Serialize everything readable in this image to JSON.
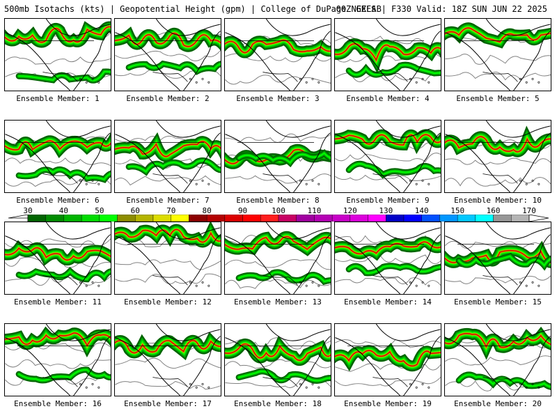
{
  "header": {
    "left": "500mb Isotachs (kts) | Geopotential Height (gpm) | College of DuPage NEXLAB",
    "right": "00Z GEFS | F330 Valid: 18Z SUN JUN 22 2025"
  },
  "caption_prefix": "Ensemble Member:",
  "members": [
    {
      "label": "Ensemble Member: 1"
    },
    {
      "label": "Ensemble Member: 2"
    },
    {
      "label": "Ensemble Member: 3"
    },
    {
      "label": "Ensemble Member: 4"
    },
    {
      "label": "Ensemble Member: 5"
    },
    {
      "label": "Ensemble Member: 6"
    },
    {
      "label": "Ensemble Member: 7"
    },
    {
      "label": "Ensemble Member: 8"
    },
    {
      "label": "Ensemble Member: 9"
    },
    {
      "label": "Ensemble Member: 10"
    },
    {
      "label": "Ensemble Member: 11"
    },
    {
      "label": "Ensemble Member: 12"
    },
    {
      "label": "Ensemble Member: 13"
    },
    {
      "label": "Ensemble Member: 14"
    },
    {
      "label": "Ensemble Member: 15"
    },
    {
      "label": "Ensemble Member: 16"
    },
    {
      "label": "Ensemble Member: 17"
    },
    {
      "label": "Ensemble Member: 18"
    },
    {
      "label": "Ensemble Member: 19"
    },
    {
      "label": "Ensemble Member: 20"
    }
  ],
  "colorbar": {
    "labels": [
      "30",
      "40",
      "50",
      "60",
      "70",
      "80",
      "90",
      "100",
      "110",
      "120",
      "130",
      "140",
      "150",
      "160",
      "170"
    ],
    "colors": [
      "#006400",
      "#008c00",
      "#00b400",
      "#00dc00",
      "#00ff00",
      "#8c8c00",
      "#b4b400",
      "#dcdc00",
      "#ffff00",
      "#8c0000",
      "#b40000",
      "#dc0000",
      "#ff0000",
      "#ff1e1e",
      "#c80064",
      "#a000a0",
      "#b400b4",
      "#c800c8",
      "#dc00dc",
      "#ff00ff",
      "#0000c8",
      "#0000ff",
      "#0050ff",
      "#0096ff",
      "#00c8ff",
      "#00ffff",
      "#969696",
      "#b4b4b4"
    ],
    "legend_colors": {
      "land_outline": "#000000",
      "height_contour": "#808080",
      "jet_core": "#8b0000"
    }
  }
}
